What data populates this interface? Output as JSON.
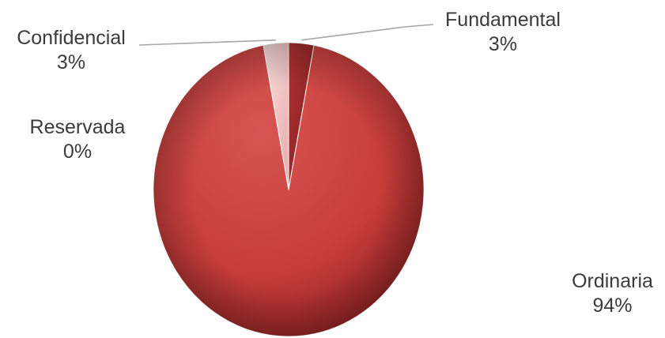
{
  "chart_data": {
    "type": "pie",
    "slices": [
      {
        "label": "Fundamental",
        "value": 3,
        "display": "3%",
        "color": "#9e2a2b"
      },
      {
        "label": "Ordinaria",
        "value": 94,
        "display": "94%",
        "color": "#c9403d"
      },
      {
        "label": "Reservada",
        "value": 0,
        "display": "0%",
        "color": "#c9403d"
      },
      {
        "label": "Confidencial",
        "value": 3,
        "display": "3%",
        "color": "#f3c4c4"
      }
    ],
    "start_angle_deg": 0,
    "direction": "clockwise",
    "style": "3d-shaded",
    "leader_line_color": "#a6a6a6"
  }
}
